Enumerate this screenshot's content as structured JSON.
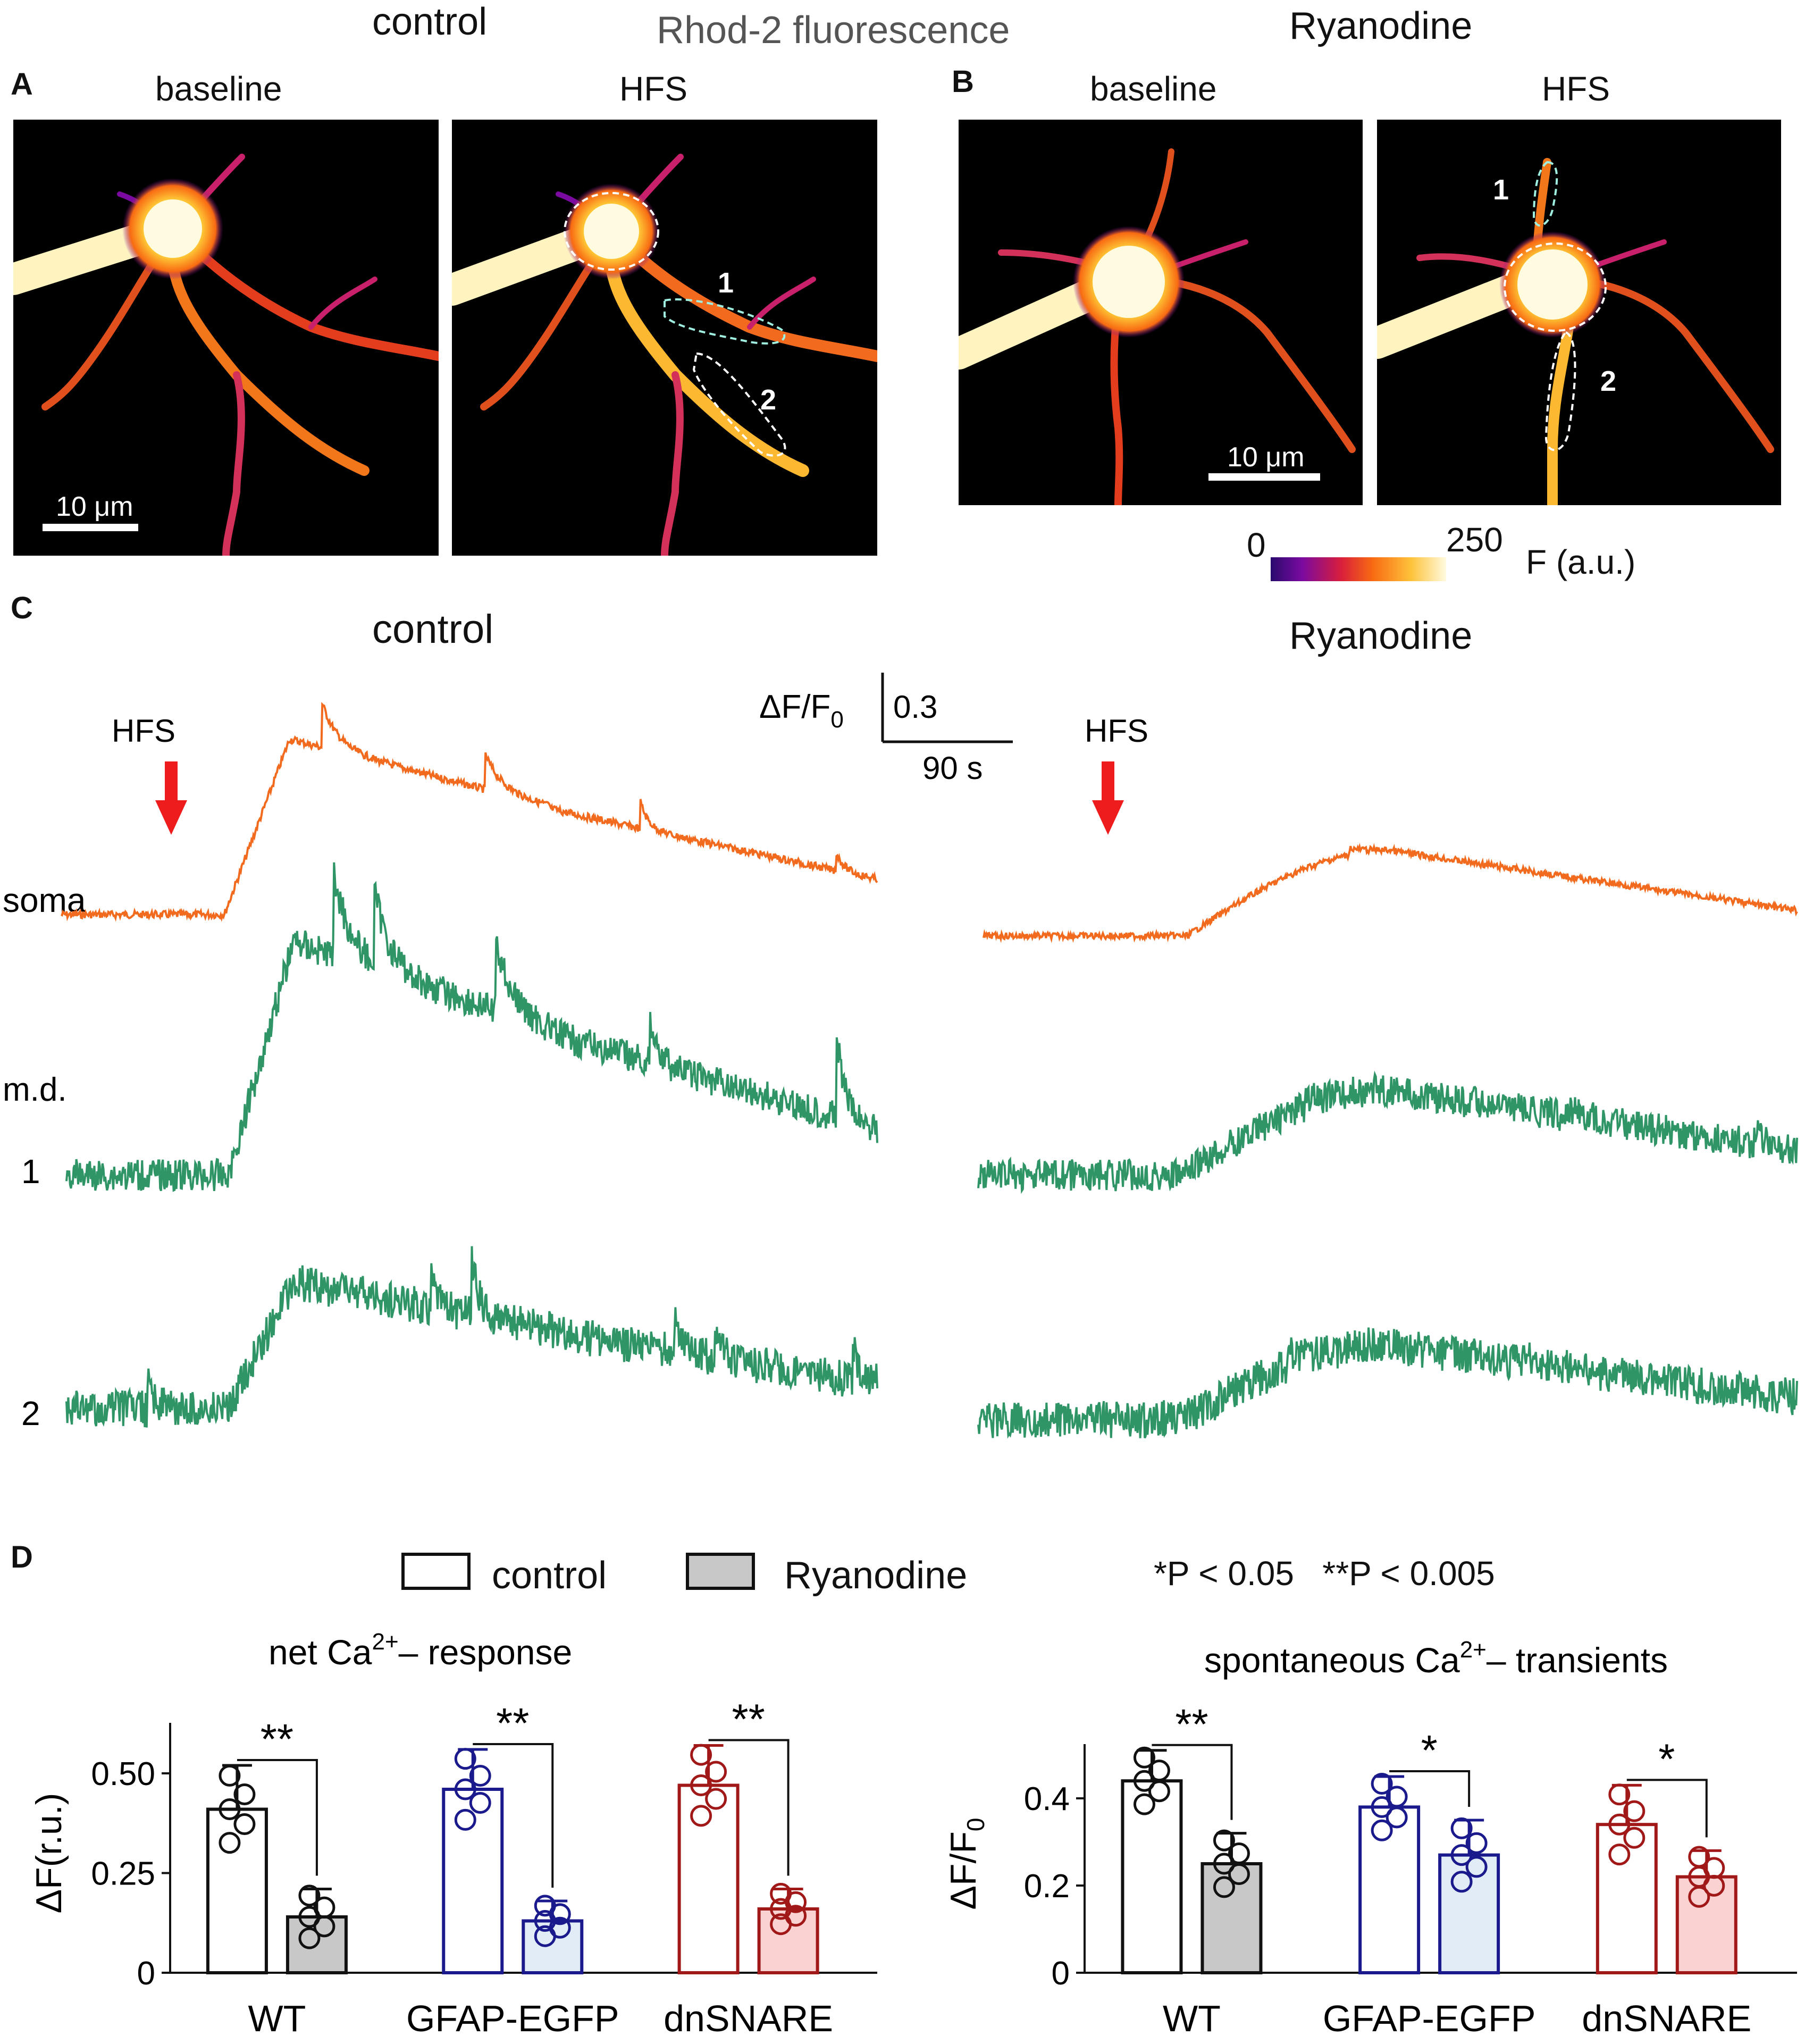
{
  "header": {
    "control": "control",
    "rhod": "Rhod-2 fluorescence",
    "ryanodine": "Ryanodine"
  },
  "panels": {
    "A": "A",
    "B": "B",
    "C": "C",
    "D": "D"
  },
  "micro": {
    "baseline": "baseline",
    "hfs": "HFS",
    "scale": "10 µm",
    "roi1": "1",
    "roi2": "2"
  },
  "colorbar": {
    "min": "0",
    "max": "250",
    "unit": "F (a.u.)",
    "colors": [
      "#2a0a6e",
      "#7a0aa0",
      "#d81e3c",
      "#f86a12",
      "#fec23a",
      "#fffbe0"
    ]
  },
  "traces": {
    "control_title": "control",
    "ryanodine_title": "Ryanodine",
    "hfs": "HFS",
    "scalebar_y_label": "ΔF/F0",
    "scalebar_y_value": "0.3",
    "scalebar_x_value": "90 s",
    "rows": {
      "soma": "soma",
      "md": "m.d.",
      "one": "1",
      "two": "2"
    },
    "colors": {
      "soma": "#f26a1d",
      "md": "#2f9566",
      "arrow": "#ee1c1c"
    }
  },
  "legend": {
    "control": "control",
    "ryanodine": "Ryanodine",
    "sig": "*P < 0.05   **P < 0.005"
  },
  "chart_data": [
    {
      "type": "bar",
      "title": "net Ca2+– response",
      "ylabel": "ΔF(r.u.)",
      "ylim": [
        0,
        0.6
      ],
      "yticks": [
        "0",
        "0.25",
        "0.50"
      ],
      "categories": [
        "WT",
        "GFAP-EGFP",
        "dnSNARE"
      ],
      "series": [
        {
          "name": "control",
          "values": [
            0.41,
            0.46,
            0.47
          ],
          "err": [
            0.11,
            0.1,
            0.1
          ]
        },
        {
          "name": "Ryanodine",
          "values": [
            0.14,
            0.13,
            0.16
          ],
          "err": [
            0.07,
            0.05,
            0.05
          ]
        }
      ],
      "significance": [
        "**",
        "**",
        "**"
      ],
      "colors": [
        "#111111",
        "#1a1a8c",
        "#a01818"
      ],
      "fills": [
        "#c8c8c8",
        "#e2ecf7",
        "#fbd2d2"
      ]
    },
    {
      "type": "bar",
      "title": "spontaneous Ca2+– transients",
      "ylabel": "ΔF/F0",
      "ylim": [
        0,
        0.5
      ],
      "yticks": [
        "0",
        "0.2",
        "0.4"
      ],
      "categories": [
        "WT",
        "GFAP-EGFP",
        "dnSNARE"
      ],
      "series": [
        {
          "name": "control",
          "values": [
            0.44,
            0.38,
            0.34
          ],
          "err": [
            0.07,
            0.07,
            0.09
          ]
        },
        {
          "name": "Ryanodine",
          "values": [
            0.25,
            0.27,
            0.22
          ],
          "err": [
            0.07,
            0.08,
            0.06
          ]
        }
      ],
      "significance": [
        "**",
        "*",
        "*"
      ],
      "colors": [
        "#111111",
        "#1a1a8c",
        "#a01818"
      ],
      "fills": [
        "#c8c8c8",
        "#e2ecf7",
        "#fbd2d2"
      ]
    }
  ]
}
